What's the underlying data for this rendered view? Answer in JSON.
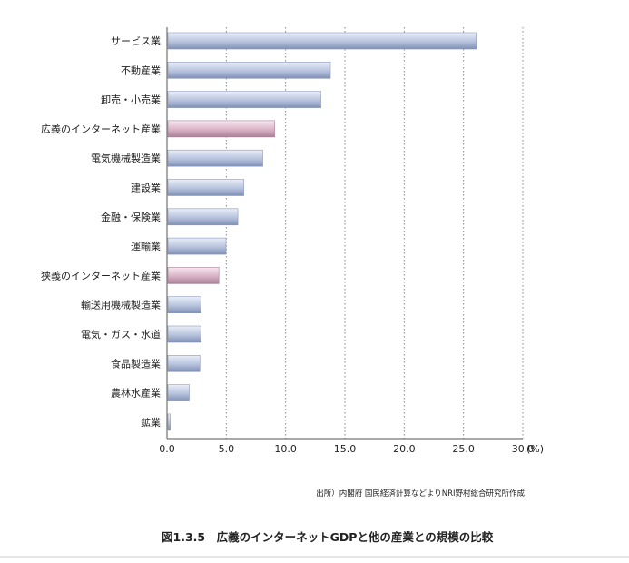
{
  "chart_data": {
    "type": "bar",
    "orientation": "horizontal",
    "categories": [
      "サービス業",
      "不動産業",
      "卸売・小売業",
      "広義のインターネット産業",
      "電気機械製造業",
      "建設業",
      "金融・保険業",
      "運輸業",
      "狭義のインターネット産業",
      "輸送用機械製造業",
      "電気・ガス・水道",
      "食品製造業",
      "農林水産業",
      "鉱業"
    ],
    "values": [
      26.0,
      13.7,
      12.9,
      9.0,
      8.0,
      6.4,
      5.9,
      4.9,
      4.3,
      2.8,
      2.8,
      2.7,
      1.8,
      0.2
    ],
    "highlight": [
      false,
      false,
      false,
      true,
      false,
      false,
      false,
      false,
      true,
      false,
      false,
      false,
      false,
      false
    ],
    "xlim": [
      0,
      30
    ],
    "x_ticks": [
      0,
      5,
      10,
      15,
      20,
      25,
      30
    ],
    "x_tick_labels": [
      "0.0",
      "5.0",
      "10.0",
      "15.0",
      "20.0",
      "25.0",
      "30.0"
    ],
    "unit_label": "(%)",
    "grid": "vertical dotted",
    "colors": {
      "bar": "#b9c4dc",
      "bar_highlight": "#d9b4c6",
      "axis": "#555555",
      "grid": "#888888"
    }
  },
  "source_note": "出所）内閣府 国民経済計算などよりNRI野村総合研究所作成",
  "caption": "図1.3.5　広義のインターネットGDPと他の産業との規模の比較"
}
